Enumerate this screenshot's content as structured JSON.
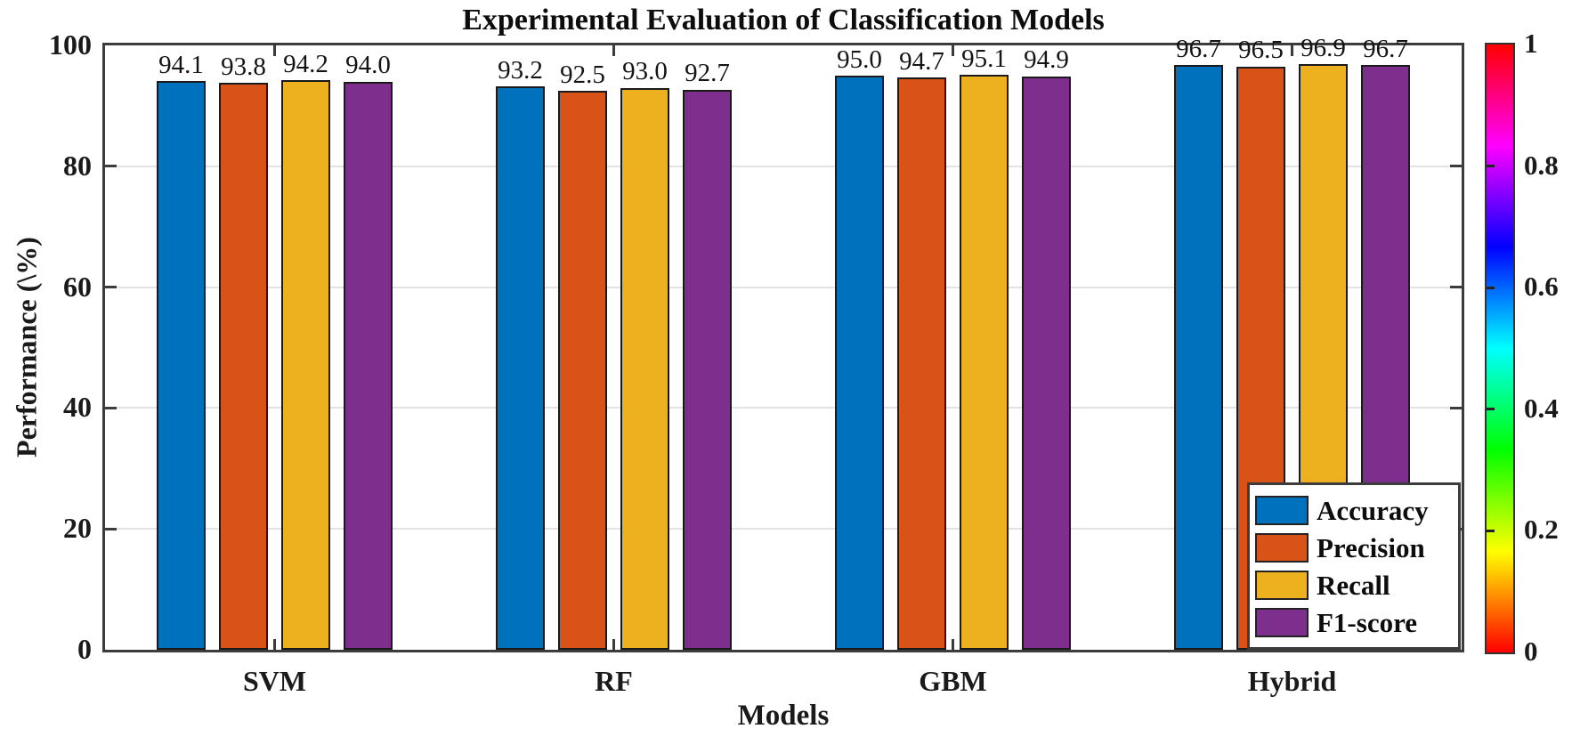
{
  "chart_data": {
    "type": "bar",
    "title": "Experimental Evaluation of Classification Models",
    "xlabel": "Models",
    "ylabel": "Performance (\\%)",
    "categories": [
      "SVM",
      "RF",
      "GBM",
      "Hybrid"
    ],
    "series": [
      {
        "name": "Accuracy",
        "color": "#0072BD",
        "values": [
          94.1,
          93.2,
          95.0,
          96.7
        ]
      },
      {
        "name": "Precision",
        "color": "#D95319",
        "values": [
          93.8,
          92.5,
          94.7,
          96.5
        ]
      },
      {
        "name": "Recall",
        "color": "#EDB120",
        "values": [
          94.2,
          93.0,
          95.1,
          96.9
        ]
      },
      {
        "name": "F1-score",
        "color": "#7E2F8E",
        "values": [
          94.0,
          92.7,
          94.9,
          96.7
        ]
      }
    ],
    "ylim": [
      0,
      100
    ],
    "yticks": [
      0,
      20,
      40,
      60,
      80,
      100
    ],
    "grid": true,
    "value_label_decimals": 1,
    "legend_position": "bottom-right",
    "bar_edge_color": "#1a1a1a"
  },
  "colorbar": {
    "colormap": "hsv",
    "tick_labels": [
      "0",
      "0.2",
      "0.4",
      "0.6",
      "0.8",
      "1"
    ],
    "tick_values": [
      0,
      0.2,
      0.4,
      0.6,
      0.8,
      1
    ],
    "gradient_bottom_to_top": [
      "#FF0000",
      "#FFFF00",
      "#00FF00",
      "#00FFFF",
      "#0000FF",
      "#FF00FF",
      "#FF0000"
    ]
  }
}
